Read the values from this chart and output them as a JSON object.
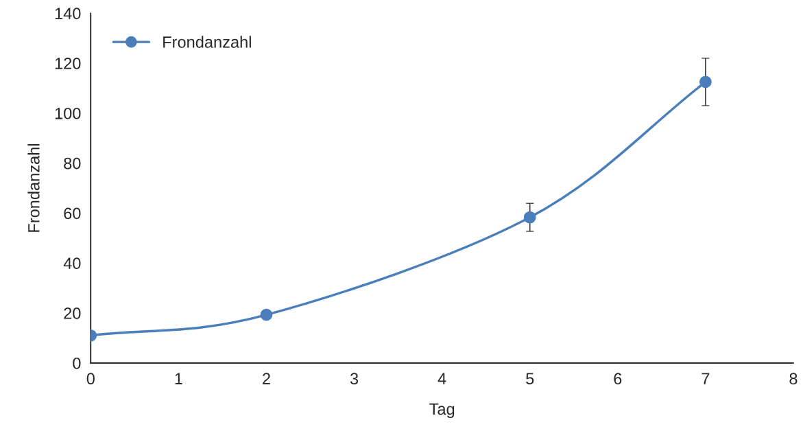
{
  "chart_data": {
    "type": "line",
    "xlabel": "Tag",
    "ylabel": "Frondanzahl",
    "x": [
      0,
      2,
      5,
      7
    ],
    "series": [
      {
        "name": "Frondanzahl",
        "color": "#4a7ebb",
        "values": [
          11.0,
          19.3,
          58.3,
          112.5
        ],
        "errors": [
          null,
          null,
          5.6,
          9.5
        ]
      }
    ],
    "xlim": [
      0,
      8
    ],
    "xticks": [
      0,
      1,
      2,
      3,
      4,
      5,
      6,
      7,
      8
    ],
    "ylim": [
      0,
      140
    ],
    "yticks": [
      0,
      20,
      40,
      60,
      80,
      100,
      120,
      140
    ],
    "grid": false,
    "legend": "top left",
    "marker": "circle",
    "line_style": "solid"
  }
}
